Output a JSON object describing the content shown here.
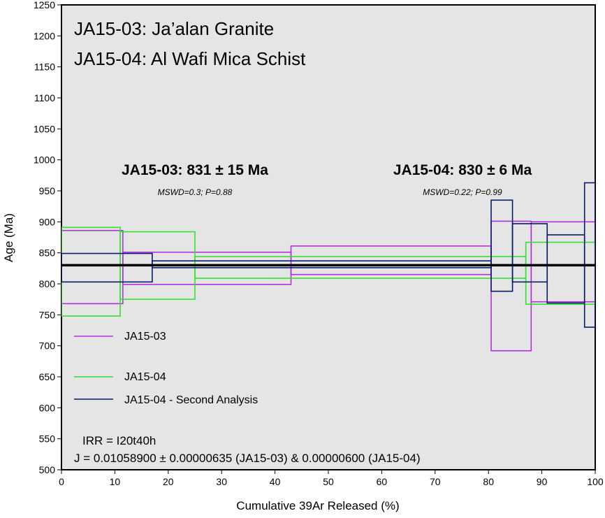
{
  "chart_data": {
    "type": "line",
    "title_lines": [
      "JA15-03: Ja’alan Granite",
      "JA15-04: Al Wafi Mica Schist"
    ],
    "xlabel": "Cumulative 39Ar Released (%)",
    "ylabel": "Age (Ma)",
    "xlim": [
      0,
      100
    ],
    "ylim": [
      500,
      1250
    ],
    "x_ticks": [
      0,
      10,
      20,
      30,
      40,
      50,
      60,
      70,
      80,
      90,
      100
    ],
    "y_ticks": [
      500,
      550,
      600,
      650,
      700,
      750,
      800,
      850,
      900,
      950,
      1000,
      1050,
      1100,
      1150,
      1200,
      1250
    ],
    "grid": false,
    "legend_position": "bottom-left",
    "reference_line": {
      "age": 830
    },
    "age_labels": [
      {
        "text": "JA15-03: 831 ± 15 Ma",
        "mswd": "MSWD=0.3; P=0.88"
      },
      {
        "text": "JA15-04: 830 ± 6 Ma",
        "mswd": "MSWD=0.22; P=0.99"
      }
    ],
    "notes": [
      "IRR = I20t40h",
      "J = 0.01058900 ± 0.00000635 (JA15-03) & 0.00000600 (JA15-04)"
    ],
    "series": [
      {
        "name": "JA15-03",
        "color": "#b030e0",
        "steps": [
          {
            "x0": 0,
            "x1": 11.5,
            "low": 768,
            "high": 886
          },
          {
            "x0": 11.5,
            "x1": 43,
            "low": 799,
            "high": 851
          },
          {
            "x0": 43,
            "x1": 80.5,
            "low": 815,
            "high": 861
          },
          {
            "x0": 80.5,
            "x1": 88,
            "low": 692,
            "high": 901
          },
          {
            "x0": 88,
            "x1": 100,
            "low": 771,
            "high": 900
          }
        ]
      },
      {
        "name": "JA15-04",
        "color": "#33e033",
        "steps": [
          {
            "x0": 0,
            "x1": 11,
            "low": 748,
            "high": 891
          },
          {
            "x0": 11,
            "x1": 25,
            "low": 775,
            "high": 884
          },
          {
            "x0": 25,
            "x1": 87,
            "low": 809,
            "high": 844
          },
          {
            "x0": 87,
            "x1": 100,
            "low": 767,
            "high": 867
          }
        ]
      },
      {
        "name": "JA15-04 - Second Analysis",
        "color": "#0a1a6a",
        "steps": [
          {
            "x0": 0,
            "x1": 17,
            "low": 803,
            "high": 849
          },
          {
            "x0": 17,
            "x1": 80.5,
            "low": 826,
            "high": 837
          },
          {
            "x0": 80.5,
            "x1": 84.5,
            "low": 788,
            "high": 935
          },
          {
            "x0": 84.5,
            "x1": 91,
            "low": 803,
            "high": 897
          },
          {
            "x0": 91,
            "x1": 98,
            "low": 769,
            "high": 879
          },
          {
            "x0": 98,
            "x1": 100,
            "low": 730,
            "high": 963
          }
        ]
      }
    ]
  }
}
